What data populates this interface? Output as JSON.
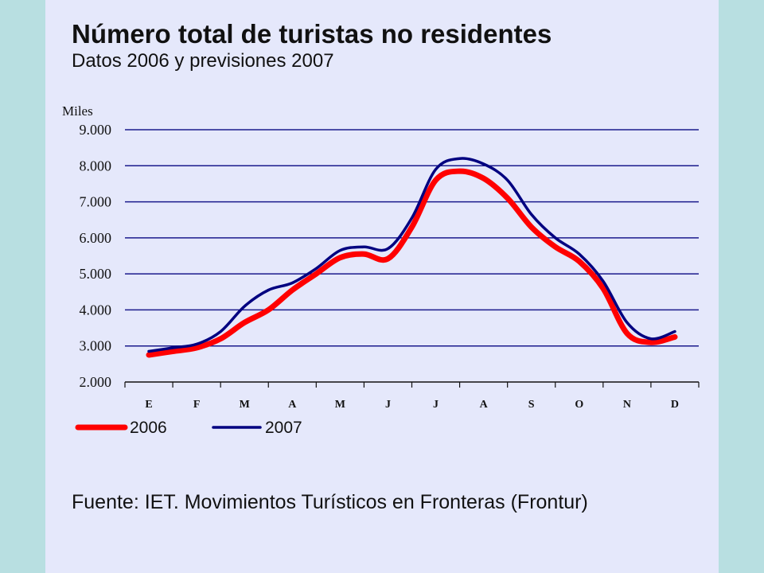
{
  "title": "Número total de turistas no residentes",
  "subtitle": "Datos 2006 y previsiones 2007",
  "source": "Fuente: IET. Movimientos Turísticos en Fronteras (Frontur)",
  "colors": {
    "page_background": "#b8dfe1",
    "panel_background": "#e5e8fb",
    "series_2006": "#ff0000",
    "series_2007": "#000080",
    "gridline": "#1a1a8c"
  },
  "chart_data": {
    "type": "line",
    "ylabel": "Miles",
    "xlabel": "",
    "ylim": [
      2000,
      9000
    ],
    "yticks": [
      2000,
      3000,
      4000,
      5000,
      6000,
      7000,
      8000,
      9000
    ],
    "ytick_labels": [
      "2.000",
      "3.000",
      "4.000",
      "5.000",
      "6.000",
      "7.000",
      "8.000",
      "9.000"
    ],
    "grid": true,
    "legend_placement": "bottom-left",
    "categories": [
      "E",
      "F",
      "M",
      "A",
      "M",
      "J",
      "J",
      "A",
      "S",
      "O",
      "N",
      "D"
    ],
    "series": [
      {
        "name": "2006",
        "color": "#ff0000",
        "x": [
          1,
          1.5,
          2,
          2.5,
          3,
          3.5,
          4,
          4.5,
          5,
          5.5,
          6,
          6.5,
          7,
          7.5,
          8,
          8.5,
          9,
          9.5,
          10,
          10.5,
          11,
          11.5,
          12
        ],
        "values": [
          2750,
          2850,
          2950,
          3200,
          3650,
          4000,
          4550,
          5000,
          5450,
          5550,
          5420,
          6300,
          7600,
          7850,
          7650,
          7100,
          6300,
          5750,
          5350,
          4600,
          3350,
          3100,
          3250
        ]
      },
      {
        "name": "2007",
        "color": "#000080",
        "x": [
          1,
          1.5,
          2,
          2.5,
          3,
          3.5,
          4,
          4.5,
          5,
          5.5,
          6,
          6.5,
          7,
          7.5,
          8,
          8.5,
          9,
          9.5,
          10,
          10.5,
          11,
          11.5,
          12
        ],
        "values": [
          2850,
          2950,
          3050,
          3400,
          4100,
          4550,
          4750,
          5150,
          5650,
          5750,
          5700,
          6550,
          7900,
          8200,
          8050,
          7600,
          6650,
          6000,
          5550,
          4800,
          3650,
          3200,
          3400
        ]
      }
    ]
  }
}
